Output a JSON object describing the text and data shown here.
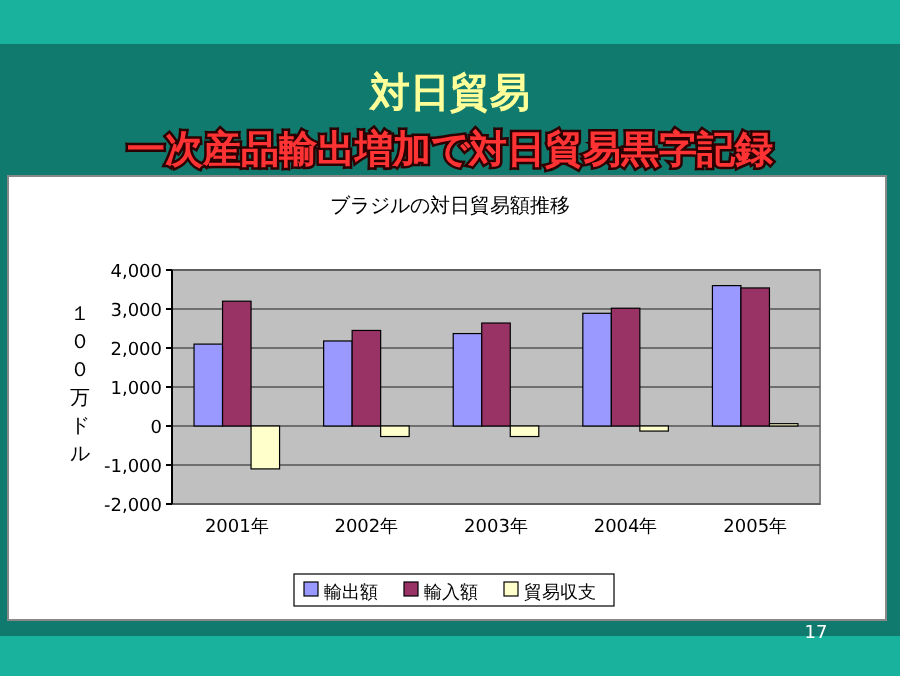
{
  "chart_data": {
    "type": "bar",
    "title": "対日貿易",
    "subtitle": "一次産品輸出増加で対日貿易黒字記録",
    "annotations": [
      "ブラジルの対日貿易額推移",
      "17"
    ],
    "ylabel": "１００万ドル",
    "categories": [
      "2001年",
      "2002年",
      "2003年",
      "2004年",
      "2005年"
    ],
    "series": [
      {
        "name": "輸出額",
        "color": "#9999ff",
        "values": [
          2100,
          2180,
          2370,
          2890,
          3600
        ]
      },
      {
        "name": "輸入額",
        "color": "#993366",
        "values": [
          3200,
          2450,
          2640,
          3020,
          3540
        ]
      },
      {
        "name": "貿易収支",
        "color": "#ffffcc",
        "values": [
          -1100,
          -270,
          -270,
          -130,
          60
        ]
      }
    ],
    "ylim": [
      -2000,
      4000
    ],
    "yticks": [
      {
        "value": -2000,
        "label": "-2,000"
      },
      {
        "value": -1000,
        "label": "-1,000"
      },
      {
        "value": 0,
        "label": "0"
      },
      {
        "value": 1000,
        "label": "1,000"
      },
      {
        "value": 2000,
        "label": "2,000"
      },
      {
        "value": 3000,
        "label": "3,000"
      },
      {
        "value": 4000,
        "label": "4,000"
      }
    ],
    "grid": "y",
    "legend": "bottom"
  }
}
